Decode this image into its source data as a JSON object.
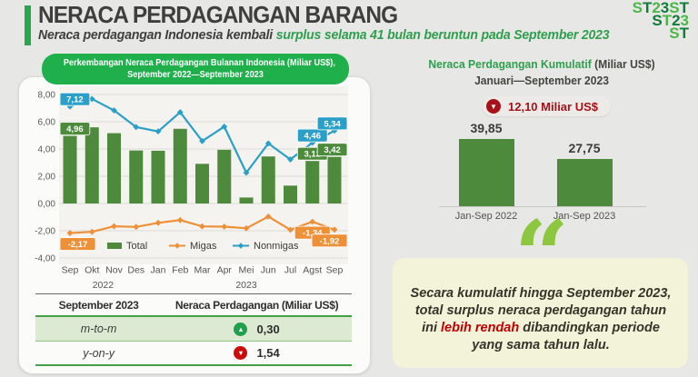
{
  "header": {
    "title": "NERACA PERDAGANGAN BARANG",
    "subtitle_plain": "Neraca perdagangan Indonesia kembali ",
    "subtitle_highlight": "surplus selama 41 bulan beruntun pada September 2023"
  },
  "logo": {
    "lines": [
      "ST23ST",
      "ST23",
      "ST"
    ]
  },
  "monthly": {
    "title_line1": "Perkembangan Neraca Perdagangan Bulanan Indonesia (Miliar US$),",
    "title_line2": "September 2022—September 2023"
  },
  "table": {
    "period_header": "September 2023",
    "value_header": "Neraca Perdagangan (Miliar US$)",
    "rows": [
      {
        "label": "m-to-m",
        "direction": "up",
        "value": "0,30"
      },
      {
        "label": "y-on-y",
        "direction": "down",
        "value": "1,54"
      }
    ]
  },
  "cumulative": {
    "title_green": "Neraca Perdagangan Kumulatif",
    "title_rest": " (Miliar US$)",
    "subtitle": "Januari—September 2023",
    "badge_value": "12,10 Miliar US$"
  },
  "quote": {
    "pre": "Secara kumulatif hingga September 2023, total surplus neraca perdagangan tahun ini ",
    "highlight": "lebih rendah",
    "post": " dibandingkan periode yang sama tahun lalu."
  },
  "icons": {
    "up_glyph": "▲",
    "down_glyph": "▼",
    "quote_glyph": "“"
  },
  "colors": {
    "accent_green": "#1fb04c",
    "bar_green": "#4d8a3c",
    "migas_orange": "#ee9038",
    "nonmigas_blue": "#2b9fc7",
    "red": "#c00000",
    "badge_red": "#a81119",
    "cream": "#f3f3da",
    "quote_green": "#8dc63f"
  },
  "chart_data": [
    {
      "type": "bar+line",
      "title": "Perkembangan Neraca Perdagangan Bulanan Indonesia (Miliar US$), September 2022—September 2023",
      "categories": [
        "Sep",
        "Okt",
        "Nov",
        "Des",
        "Jan",
        "Feb",
        "Mar",
        "Apr",
        "Mei",
        "Jun",
        "Jul",
        "Agst",
        "Sep"
      ],
      "year_groups": [
        {
          "label": "2022",
          "from": 0,
          "to": 3
        },
        {
          "label": "2023",
          "from": 4,
          "to": 12
        }
      ],
      "ylim": [
        -4,
        8
      ],
      "ytick_labels": [
        "8,00",
        "6,00",
        "4,00",
        "2,00",
        "0,00",
        "-2,00",
        "-4,00"
      ],
      "grid": true,
      "legend_position": "bottom-inside",
      "series": [
        {
          "name": "Total",
          "type": "bar",
          "color": "#4d8a3c",
          "values": [
            4.96,
            5.59,
            5.16,
            3.89,
            3.87,
            5.48,
            2.91,
            3.94,
            0.44,
            3.45,
            1.31,
            3.12,
            3.42
          ]
        },
        {
          "name": "Migas",
          "type": "line",
          "color": "#ee9038",
          "values": [
            -2.17,
            -2.08,
            -1.67,
            -1.72,
            -1.42,
            -1.22,
            -1.68,
            -1.7,
            -1.82,
            -0.96,
            -1.93,
            -1.34,
            -1.92
          ]
        },
        {
          "name": "Nonmigas",
          "type": "line",
          "color": "#2b9fc7",
          "values": [
            7.12,
            7.67,
            6.83,
            5.61,
            5.29,
            6.7,
            4.58,
            5.64,
            2.26,
            4.41,
            3.23,
            4.46,
            5.34
          ]
        }
      ],
      "value_labels": [
        {
          "series": "Nonmigas",
          "index": 0,
          "text": "7,12"
        },
        {
          "series": "Total",
          "index": 0,
          "text": "4,96"
        },
        {
          "series": "Migas",
          "index": 0,
          "text": "-2,17"
        },
        {
          "series": "Nonmigas",
          "index": 11,
          "text": "4,46"
        },
        {
          "series": "Nonmigas",
          "index": 12,
          "text": "5,34"
        },
        {
          "series": "Total",
          "index": 11,
          "text": "3,12"
        },
        {
          "series": "Total",
          "index": 12,
          "text": "3,42"
        },
        {
          "series": "Migas",
          "index": 11,
          "text": "-1,34"
        },
        {
          "series": "Migas",
          "index": 12,
          "text": "-1,92"
        }
      ]
    },
    {
      "type": "bar",
      "title": "Neraca Perdagangan Kumulatif (Miliar US$) Januari—September 2023",
      "categories": [
        "Jan-Sep 2022",
        "Jan-Sep 2023"
      ],
      "values": [
        39.85,
        27.75
      ],
      "value_labels": [
        "39,85",
        "27,75"
      ],
      "difference_label": "12,10 Miliar US$",
      "ylim": [
        0,
        45
      ],
      "grid": false
    }
  ]
}
